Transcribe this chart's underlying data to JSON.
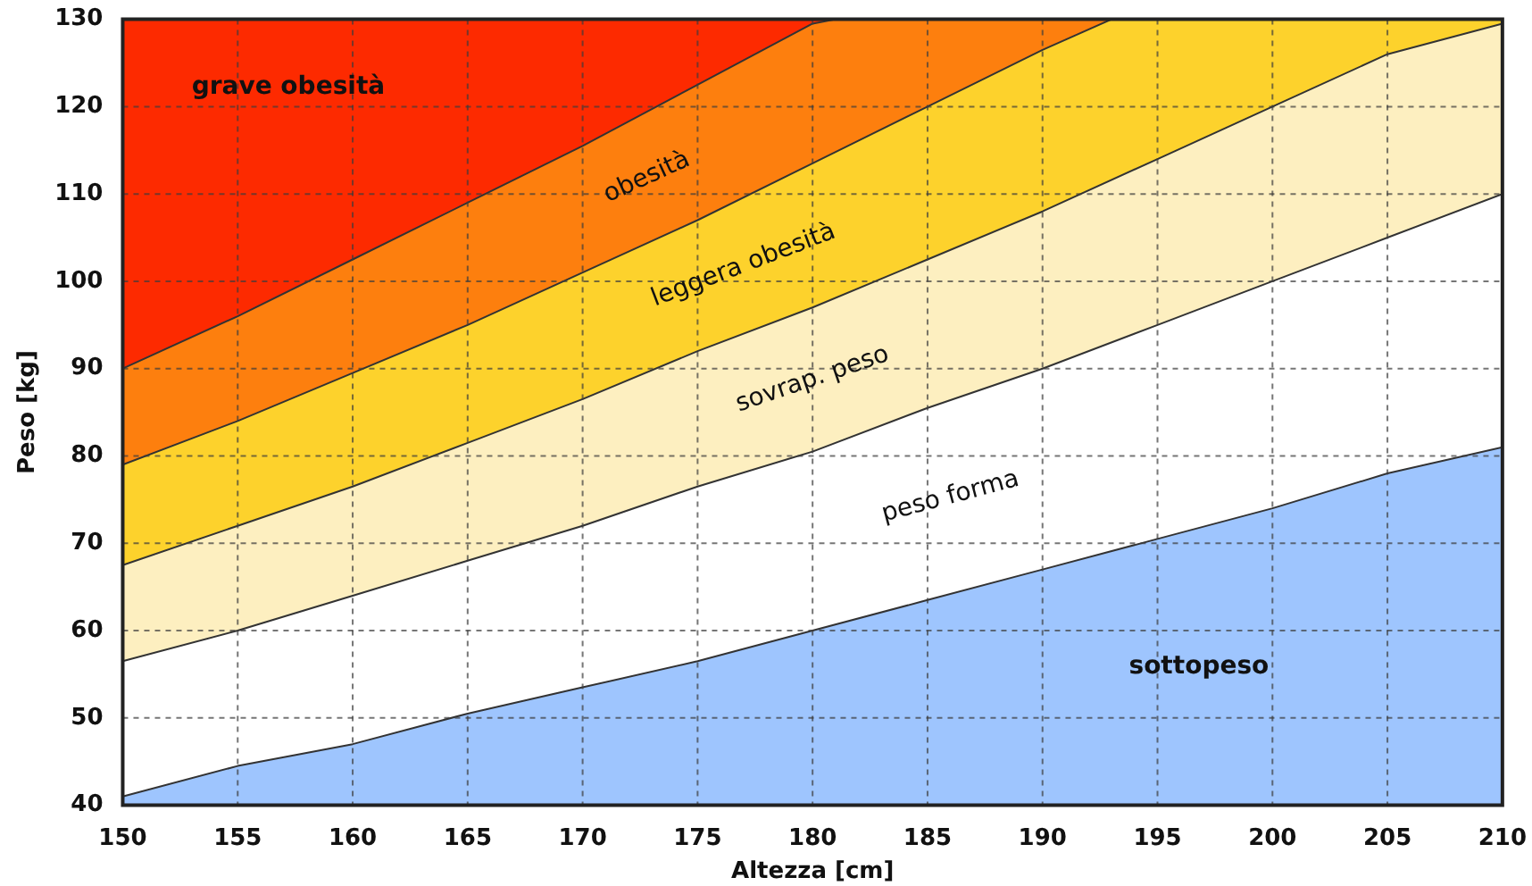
{
  "chart_data": {
    "type": "area",
    "xlabel": "Altezza [cm]",
    "ylabel": "Peso [kg]",
    "xlim": [
      150,
      210
    ],
    "ylim": [
      40,
      130
    ],
    "xticks": [
      150,
      155,
      160,
      165,
      170,
      175,
      180,
      185,
      190,
      195,
      200,
      205,
      210
    ],
    "yticks": [
      40,
      50,
      60,
      70,
      80,
      90,
      100,
      110,
      120,
      130
    ],
    "grid": true,
    "legend": false,
    "line_style": "solid",
    "marker": "none",
    "series": [
      {
        "name": "sottopeso",
        "color": "#9ec5fe",
        "x": [
          150,
          155,
          160,
          165,
          170,
          175,
          180,
          185,
          190,
          195,
          200,
          205,
          210
        ],
        "values": [
          41,
          44.5,
          47,
          50.5,
          53.5,
          56.5,
          60,
          63.5,
          67,
          70.5,
          74,
          78,
          81
        ]
      },
      {
        "name": "peso forma",
        "color": "#ffffff",
        "x": [
          150,
          155,
          160,
          165,
          170,
          175,
          180,
          185,
          190,
          195,
          200,
          205,
          210
        ],
        "values": [
          56.5,
          60,
          64,
          68,
          72,
          76.5,
          80.5,
          85.5,
          90,
          95,
          100,
          105,
          110
        ]
      },
      {
        "name": "sovrap. peso",
        "color": "#fdefc0",
        "x": [
          150,
          155,
          160,
          165,
          170,
          175,
          180,
          185,
          190,
          195,
          200,
          205,
          210
        ],
        "values": [
          67.5,
          72,
          76.5,
          81.5,
          86.5,
          92,
          97,
          102.5,
          108,
          114,
          120,
          126,
          129.5
        ]
      },
      {
        "name": "leggera obesità",
        "color": "#fdd22c",
        "x": [
          150,
          155,
          160,
          165,
          170,
          175,
          180,
          185,
          190,
          193,
          200,
          210
        ],
        "values": [
          79,
          84,
          89.5,
          95,
          101,
          107,
          113.5,
          120,
          126.5,
          130,
          130,
          130
        ]
      },
      {
        "name": "obesità",
        "color": "#fd7f0e",
        "x": [
          150,
          155,
          160,
          165,
          170,
          175,
          180,
          181,
          193
        ],
        "values": [
          90,
          96,
          102.5,
          109,
          115.5,
          122.5,
          129.5,
          130,
          130
        ]
      },
      {
        "name": "grave obesità",
        "color": "#fd2a00",
        "x": [
          150,
          160,
          170,
          181
        ],
        "values": [
          130,
          130,
          130,
          130
        ]
      }
    ]
  }
}
